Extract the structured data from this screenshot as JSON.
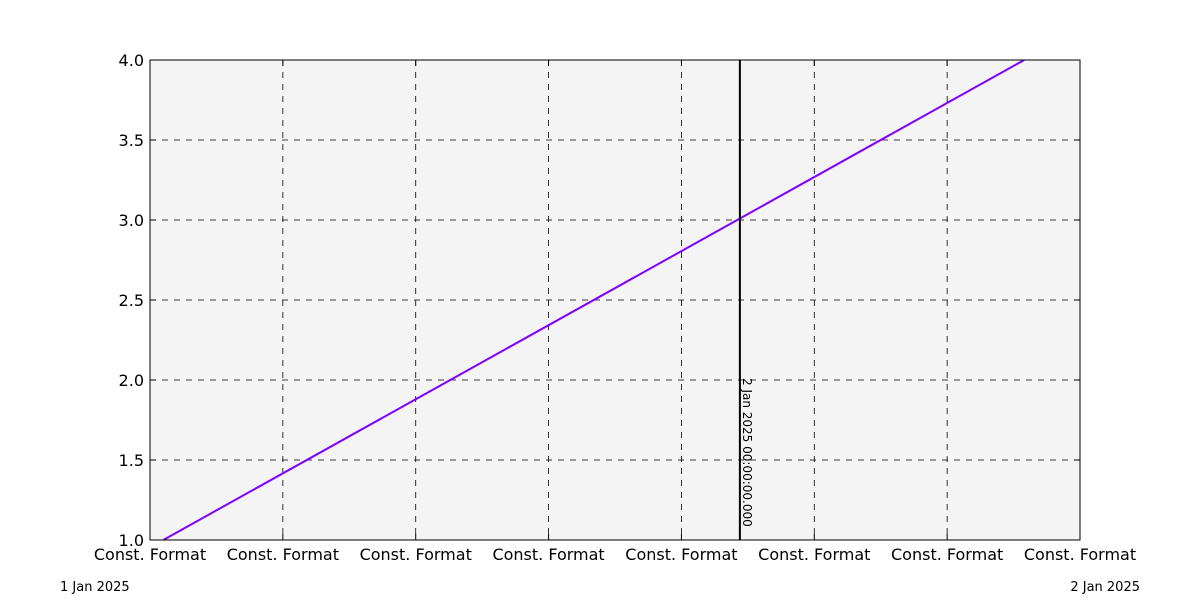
{
  "chart_data": {
    "type": "line",
    "title": "",
    "xlabel": "",
    "ylabel": "",
    "x_tick_labels": [
      "Const. Format",
      "Const. Format",
      "Const. Format",
      "Const. Format",
      "Const. Format",
      "Const. Format",
      "Const. Format",
      "Const. Format"
    ],
    "y_ticks": [
      1.0,
      1.5,
      2.0,
      2.5,
      3.0,
      3.5,
      4.0
    ],
    "y_tick_labels": [
      "1.0",
      "1.5",
      "2.0",
      "2.5",
      "3.0",
      "3.5",
      "4.0"
    ],
    "xlim": [
      0,
      7
    ],
    "ylim": [
      1.0,
      4.0
    ],
    "grid": true,
    "series": [
      {
        "x": [
          0.1,
          6.58
        ],
        "y": [
          1.0,
          4.0
        ],
        "color": "#8000ff"
      }
    ],
    "vertical_marker": {
      "x": 4.44,
      "label": "2 Jan 2025 00:00:00.000",
      "color": "#000000"
    },
    "corner_labels": {
      "left": "1 Jan 2025",
      "right": "2 Jan 2025"
    },
    "plot_background": "#f4f4f4"
  }
}
